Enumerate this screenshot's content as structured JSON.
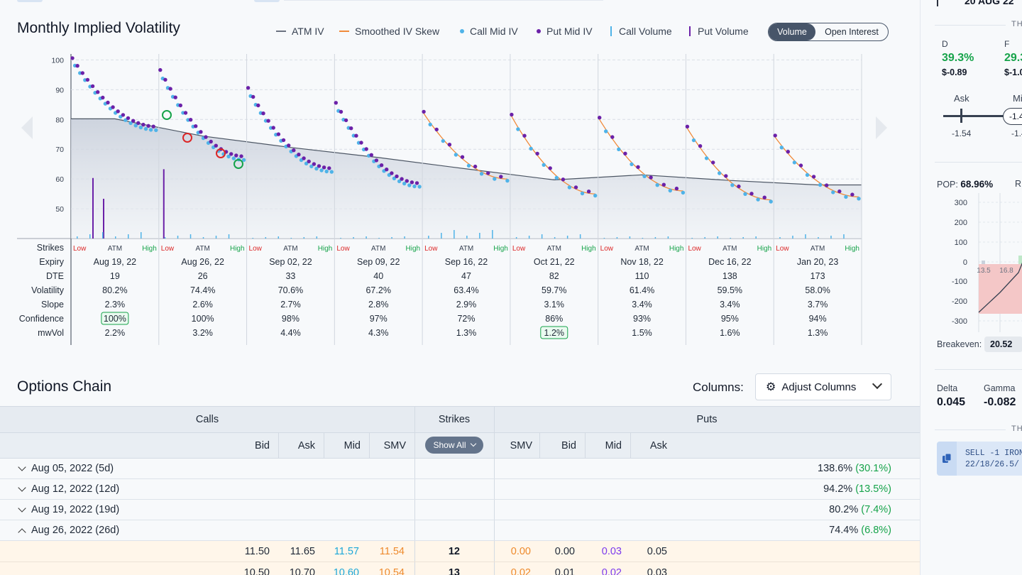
{
  "volatility": {
    "title": "Monthly Implied Volatility",
    "legend": {
      "atm_iv": "ATM IV",
      "smoothed": "Smoothed IV Skew",
      "call_mid": "Call Mid IV",
      "put_mid": "Put Mid IV",
      "call_volume": "Call Volume",
      "put_volume": "Put Volume"
    },
    "toggle": {
      "volume": "Volume",
      "open_interest": "Open Interest",
      "selected": "Volume"
    },
    "colors": {
      "atm_line": "#6b7280",
      "smoothed": "#f08a3a",
      "call_dot": "#4fb3e8",
      "put_dot": "#6b21a8",
      "low": "#dc2626",
      "high": "#16a34a",
      "confidence_box": "#16a34a"
    },
    "strike_labels": {
      "low": "Low",
      "atm": "ATM",
      "high": "High"
    },
    "row_labels": [
      "Strikes",
      "Expiry",
      "DTE",
      "Volatility",
      "Slope",
      "Confidence",
      "mwVol"
    ],
    "expirations": [
      {
        "expiry": "Aug 19, 22",
        "dte": "19",
        "volatility": "80.2%",
        "slope": "2.3%",
        "confidence": "100%",
        "mwvol": "2.2%",
        "conf_highlight": true,
        "mw_highlight": false
      },
      {
        "expiry": "Aug 26, 22",
        "dte": "26",
        "volatility": "74.4%",
        "slope": "2.6%",
        "confidence": "100%",
        "mwvol": "3.2%",
        "conf_highlight": false,
        "mw_highlight": false
      },
      {
        "expiry": "Sep 02, 22",
        "dte": "33",
        "volatility": "70.6%",
        "slope": "2.7%",
        "confidence": "98%",
        "mwvol": "4.4%",
        "conf_highlight": false,
        "mw_highlight": false
      },
      {
        "expiry": "Sep 09, 22",
        "dte": "40",
        "volatility": "67.2%",
        "slope": "2.8%",
        "confidence": "97%",
        "mwvol": "4.3%",
        "conf_highlight": false,
        "mw_highlight": false
      },
      {
        "expiry": "Sep 16, 22",
        "dte": "47",
        "volatility": "63.4%",
        "slope": "2.9%",
        "confidence": "72%",
        "mwvol": "1.3%",
        "conf_highlight": false,
        "mw_highlight": false
      },
      {
        "expiry": "Oct 21, 22",
        "dte": "82",
        "volatility": "59.7%",
        "slope": "3.1%",
        "confidence": "86%",
        "mwvol": "1.2%",
        "conf_highlight": false,
        "mw_highlight": true
      },
      {
        "expiry": "Nov 18, 22",
        "dte": "110",
        "volatility": "61.4%",
        "slope": "3.4%",
        "confidence": "93%",
        "mwvol": "1.5%",
        "conf_highlight": false,
        "mw_highlight": false
      },
      {
        "expiry": "Dec 16, 22",
        "dte": "138",
        "volatility": "59.5%",
        "slope": "3.4%",
        "confidence": "95%",
        "mwvol": "1.6%",
        "conf_highlight": false,
        "mw_highlight": false
      },
      {
        "expiry": "Jan 20, 23",
        "dte": "173",
        "volatility": "58.0%",
        "slope": "3.7%",
        "confidence": "94%",
        "mwvol": "1.3%",
        "conf_highlight": false,
        "mw_highlight": false
      }
    ]
  },
  "chart_data": {
    "type": "scatter",
    "y_ticks": [
      100,
      90,
      80,
      70,
      60,
      50
    ],
    "ylim": [
      40,
      102
    ],
    "atm_iv": [
      80.2,
      74.4,
      70.6,
      67.2,
      63.4,
      59.7,
      61.4,
      59.5,
      58.0
    ],
    "iv_start": [
      100,
      96,
      90,
      85,
      82,
      81,
      80,
      77,
      74
    ],
    "iv_end": [
      77,
      67,
      63,
      58,
      60,
      55,
      56,
      53,
      54
    ],
    "call_volume_peaks": [
      2,
      1,
      0,
      0,
      3,
      1,
      0,
      0,
      1
    ],
    "put_volume_peaks": [
      55,
      63,
      0,
      0,
      0,
      0,
      0,
      0,
      0
    ]
  },
  "chain": {
    "title": "Options Chain",
    "columns_label": "Columns:",
    "adjust_label": "Adjust Columns",
    "calls_label": "Calls",
    "strikes_label": "Strikes",
    "puts_label": "Puts",
    "show_all": "Show All",
    "call_cols": [
      "Bid",
      "Ask",
      "Mid",
      "SMV"
    ],
    "put_cols": [
      "SMV",
      "Bid",
      "Mid",
      "Ask"
    ],
    "expiries": [
      {
        "label": "Aug 05, 2022 (5d)",
        "iv": "138.6%",
        "change": "(30.1%)",
        "open": false
      },
      {
        "label": "Aug 12, 2022 (12d)",
        "iv": "94.2%",
        "change": "(13.5%)",
        "open": false
      },
      {
        "label": "Aug 19, 2022 (19d)",
        "iv": "80.2%",
        "change": "(7.4%)",
        "open": false
      },
      {
        "label": "Aug 26, 2022 (26d)",
        "iv": "74.4%",
        "change": "(6.8%)",
        "open": true
      }
    ],
    "rows": [
      {
        "c_bid": "11.50",
        "c_ask": "11.65",
        "c_mid": "11.57",
        "c_smv": "11.54",
        "strike": "12",
        "p_smv": "0.00",
        "p_bid": "0.00",
        "p_mid": "0.03",
        "p_ask": "0.05"
      },
      {
        "c_bid": "10.50",
        "c_ask": "10.70",
        "c_mid": "10.60",
        "c_smv": "10.54",
        "strike": "13",
        "p_smv": "0.02",
        "p_bid": "0.01",
        "p_mid": "0.02",
        "p_ask": "0.03"
      }
    ]
  },
  "right_panel": {
    "top_text": "20 AUG 22",
    "th": "TH",
    "d_label": "D",
    "d_value": "39.3%",
    "d_sub": "$-0.89",
    "f_label": "F",
    "f_value": "29.3",
    "f_sub": "$-1.0",
    "ask_label": "Ask",
    "mid_label": "Mi",
    "ask_value": "-1.54",
    "mid_pill": "-1.4",
    "mid_value": "-1.4",
    "pop_label": "POP:",
    "pop_value": "68.96%",
    "r_label": "R",
    "pl_ticks": [
      "300",
      "200",
      "100",
      "0",
      "-100",
      "-200",
      "-300"
    ],
    "pl_x_ticks": [
      "13.5",
      "16.8"
    ],
    "breakeven_label": "Breakeven:",
    "breakeven_value": "20.52",
    "delta_label": "Delta",
    "delta_value": "0.045",
    "gamma_label": "Gamma",
    "gamma_value": "-0.082",
    "th2": "TH",
    "order_line1": "SELL -1 IRON",
    "order_line2": "22/18/26.5/"
  }
}
